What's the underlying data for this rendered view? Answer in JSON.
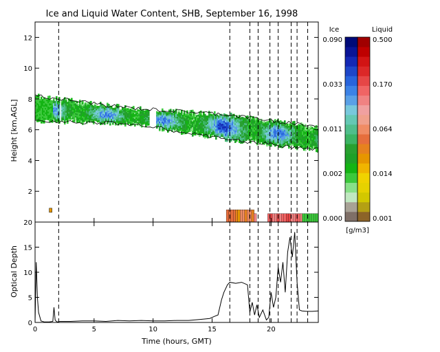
{
  "figure": {
    "title": "Ice and Liquid Water Content, SHB, September 16, 1998",
    "xlabel": "Time (hours, GMT)"
  },
  "chart_data": [
    {
      "type": "heatmap",
      "title": "Ice and Liquid Water Content, SHB, September 16, 1998",
      "ylabel": "Height [km,AGL]",
      "xlim": [
        0,
        24
      ],
      "ylim": [
        0,
        13
      ],
      "xticks": [
        0,
        5,
        10,
        15,
        20
      ],
      "yticks": [
        2,
        4,
        6,
        8,
        10,
        12
      ],
      "colorbar": {
        "units": "[g/m3]",
        "ice": {
          "label": "Ice",
          "ticks": [
            "0.000",
            "0.002",
            "0.011",
            "0.033",
            "0.090"
          ],
          "colors": [
            "#7f6f67",
            "#a8a296",
            "#c0e8c0",
            "#88e088",
            "#3cc83c",
            "#14b414",
            "#1ea028",
            "#28a030",
            "#3cb464",
            "#50be8c",
            "#64c8b4",
            "#78c8dc",
            "#5aa0e6",
            "#3c82e6",
            "#2864dc",
            "#1e46c8",
            "#1428b4",
            "#0a1496",
            "#000a78"
          ]
        },
        "liquid": {
          "label": "Liquid",
          "ticks": [
            "0.001",
            "0.014",
            "0.064",
            "0.170",
            "0.500"
          ],
          "colors": [
            "#8c6428",
            "#b4a014",
            "#d2c800",
            "#e6d200",
            "#f0d200",
            "#f0b400",
            "#e69600",
            "#e6821e",
            "#e66e3c",
            "#f08c64",
            "#f0a08c",
            "#f0a0a0",
            "#f08282",
            "#f06464",
            "#e64646",
            "#dc2828",
            "#d21414",
            "#be0000",
            "#a00000"
          ]
        }
      },
      "ice_cloud": {
        "x_range": [
          0.0,
          24.0
        ],
        "top_km": [
          8.2,
          7.4,
          7.0,
          6.2
        ],
        "base_km": [
          6.6,
          6.4,
          5.4,
          4.7
        ],
        "top_x": [
          0,
          8,
          16,
          24
        ],
        "base_x": [
          0,
          8,
          16,
          24
        ]
      },
      "liquid_cloud": {
        "x_range": [
          16.2,
          24.0
        ],
        "height_km": [
          0.0,
          0.8
        ]
      },
      "event_lines_hours": [
        2.0,
        16.5,
        18.2,
        18.9,
        19.9,
        20.6,
        21.7,
        22.2,
        23.1
      ]
    },
    {
      "type": "line",
      "xlabel": "Time (hours, GMT)",
      "ylabel": "Optical Depth",
      "xlim": [
        0,
        24
      ],
      "ylim": [
        0,
        20
      ],
      "xticks": [
        0,
        5,
        10,
        15,
        20
      ],
      "yticks": [
        0,
        5,
        10,
        15,
        20
      ],
      "series": [
        {
          "x": [
            0.0,
            0.1,
            0.2,
            0.3,
            0.5,
            0.8,
            1.0,
            1.2,
            1.5,
            1.6,
            1.7,
            1.8,
            1.9,
            2.1,
            3.0,
            4.0,
            5.0,
            6.0,
            7.0,
            8.0,
            9.0,
            10.0,
            11.0,
            12.0,
            13.0,
            14.0,
            14.8,
            15.2,
            15.5,
            15.8,
            16.0,
            16.3,
            16.5,
            17.0,
            17.5,
            18.0,
            18.2,
            18.4,
            18.6,
            18.8,
            19.0,
            19.3,
            19.6,
            19.8,
            20.0,
            20.2,
            20.4,
            20.6,
            20.8,
            21.0,
            21.2,
            21.4,
            21.6,
            21.8,
            22.0,
            22.2,
            22.4,
            22.6,
            23.0,
            23.5,
            24.0
          ],
          "y": [
            0.0,
            12.0,
            5.0,
            2.0,
            0.3,
            0.1,
            0.1,
            0.1,
            0.2,
            3.0,
            0.5,
            0.2,
            0.1,
            0.2,
            0.2,
            0.3,
            0.3,
            0.2,
            0.4,
            0.3,
            0.4,
            0.3,
            0.3,
            0.4,
            0.4,
            0.6,
            0.8,
            1.2,
            1.5,
            4.5,
            6.0,
            7.5,
            8.0,
            7.8,
            8.0,
            7.5,
            2.0,
            4.0,
            1.5,
            3.5,
            1.0,
            2.5,
            0.5,
            1.0,
            6.0,
            3.0,
            5.0,
            11.0,
            8.0,
            12.0,
            6.0,
            14.0,
            17.0,
            13.0,
            18.0,
            8.0,
            2.5,
            2.3,
            2.2,
            2.2,
            2.3
          ]
        }
      ]
    }
  ]
}
